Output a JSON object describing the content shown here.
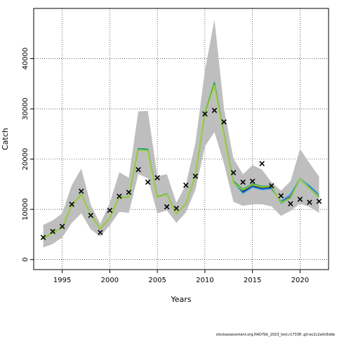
{
  "chart_data": {
    "type": "line",
    "xlabel": "Years",
    "ylabel": "Catch",
    "xlim": [
      1992,
      2023
    ],
    "ylim": [
      -2000,
      50000
    ],
    "x_ticks": [
      1995,
      2000,
      2005,
      2010,
      2015,
      2020
    ],
    "y_ticks": [
      0,
      10000,
      20000,
      30000,
      40000
    ],
    "x_tick_labels": [
      "1995",
      "2000",
      "2005",
      "2010",
      "2015",
      "2020"
    ],
    "y_tick_labels": [
      "0",
      "10000",
      "20000",
      "30000",
      "40000"
    ],
    "grid": true,
    "footnote": "stockassessment.org,HAD7bk_2023_test,r17338 ,git:ec2c2a0c6dde",
    "years": [
      1993,
      1994,
      1995,
      1996,
      1997,
      1998,
      1999,
      2000,
      2001,
      2002,
      2003,
      2004,
      2005,
      2006,
      2007,
      2008,
      2009,
      2010,
      2011,
      2012,
      2013,
      2014,
      2015,
      2016,
      2017,
      2018,
      2019,
      2020,
      2021,
      2022
    ],
    "band_upper": [
      6900,
      7800,
      9200,
      14800,
      18100,
      10900,
      7100,
      11300,
      17400,
      16300,
      29500,
      29600,
      16600,
      17000,
      11300,
      14900,
      23200,
      37600,
      47800,
      30100,
      20100,
      17000,
      18800,
      17900,
      15400,
      13700,
      15600,
      22000,
      19200,
      16500
    ],
    "band_lower": [
      2400,
      3100,
      4400,
      7300,
      9200,
      6000,
      4600,
      6800,
      9500,
      9300,
      17000,
      16200,
      9200,
      9800,
      7300,
      9400,
      13900,
      22500,
      25400,
      19100,
      11500,
      10700,
      11000,
      11000,
      10600,
      8700,
      9700,
      11100,
      10500,
      9300
    ],
    "observed": [
      4400,
      5600,
      6600,
      11000,
      13600,
      8800,
      5400,
      9800,
      12600,
      13400,
      17900,
      15400,
      16300,
      10500,
      10200,
      14800,
      16600,
      29000,
      29700,
      27400,
      17300,
      15400,
      15600,
      19100,
      14700,
      12700,
      11100,
      12000,
      11400,
      11600
    ],
    "series": [
      {
        "color": "#000000",
        "values": [
          4200,
          5300,
          6300,
          10700,
          13000,
          9000,
          6100,
          8200,
          12400,
          12400,
          21900,
          21800,
          12400,
          13000,
          9100,
          11100,
          16500,
          29000,
          34900,
          25100,
          15400,
          13600,
          14800,
          14300,
          14500,
          11300,
          12400,
          16000,
          14300,
          12500
        ]
      },
      {
        "color": "#2040c8",
        "values": [
          4200,
          5300,
          6300,
          10700,
          13000,
          9000,
          6100,
          8200,
          12400,
          12400,
          21900,
          21800,
          12400,
          13000,
          9100,
          11100,
          16500,
          29000,
          34900,
          25100,
          15400,
          13400,
          14600,
          14100,
          14300,
          11400,
          12600,
          16100,
          14500,
          12600
        ]
      },
      {
        "color": "#1e9fd8",
        "values": [
          4200,
          5300,
          6300,
          10700,
          13000,
          9000,
          6100,
          8200,
          12400,
          12400,
          21900,
          21800,
          12400,
          13000,
          9100,
          11100,
          16500,
          29000,
          34900,
          25100,
          15400,
          13200,
          14400,
          13900,
          14100,
          11600,
          13000,
          16100,
          14700,
          13000
        ]
      },
      {
        "color": "#20a060",
        "values": [
          4250,
          5350,
          6350,
          10750,
          13050,
          9050,
          6150,
          8250,
          12450,
          12450,
          22100,
          22000,
          12500,
          13100,
          9150,
          11150,
          16600,
          29200,
          35300,
          25300,
          15600,
          14000,
          15100,
          14600,
          14700,
          11200,
          12200,
          16000,
          14200,
          12400
        ]
      },
      {
        "color": "#9bd22a",
        "values": [
          4200,
          5300,
          6300,
          10700,
          13000,
          9000,
          6100,
          8200,
          12400,
          12400,
          21800,
          21700,
          12400,
          13000,
          9100,
          11100,
          16500,
          28900,
          34700,
          25000,
          15300,
          13800,
          14900,
          14400,
          14600,
          11300,
          12300,
          16000,
          14300,
          12500
        ]
      }
    ]
  }
}
